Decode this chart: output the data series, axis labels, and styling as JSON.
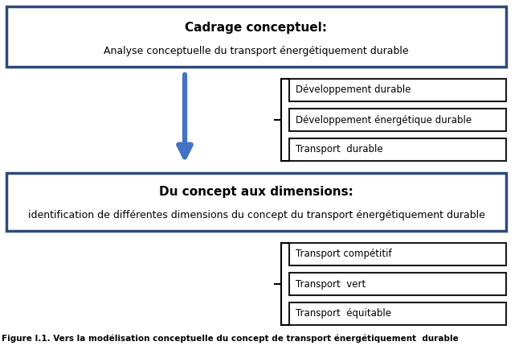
{
  "title": "Figure I.1. Vers la modélisation conceptuelle du concept de transport énergétiquement  durable",
  "box1_title": "Cadrage conceptuel:",
  "box1_subtitle": "Analyse conceptuelle du transport énergétiquement durable",
  "box2_title": "Du concept aux dimensions:",
  "box2_subtitle": "identification de différentes dimensions du concept du transport énergétiquement durable",
  "right_boxes_top": [
    "Développement durable",
    "Développement énergétique durable",
    "Transport  durable"
  ],
  "right_boxes_bottom": [
    "Transport compétitif",
    "Transport  vert",
    "Transport  équitable"
  ],
  "arrow_color": "#4472C4",
  "box_border_color": "#2E4A7A",
  "right_box_border_color": "#1a1a1a",
  "bg_color": "#ffffff",
  "text_color": "#000000",
  "subtitle_color": "#000000"
}
